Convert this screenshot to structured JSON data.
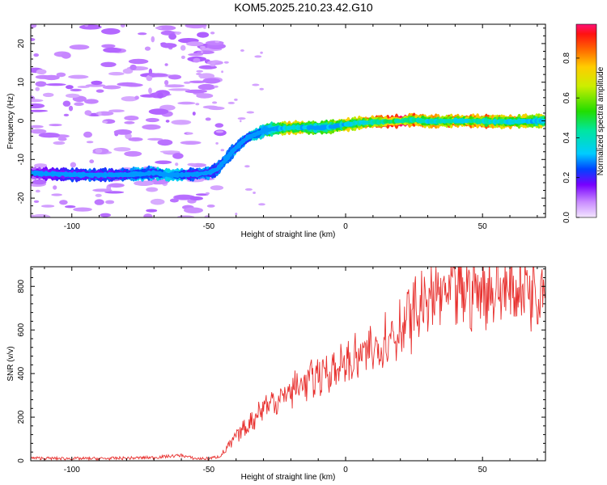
{
  "title": "KOM5.2025.210.23.42.G10",
  "chart_data": [
    {
      "type": "heatmap",
      "xlabel": "Height of straight line (km)",
      "ylabel": "Frequency (Hz)",
      "xlim": [
        -115,
        73
      ],
      "ylim": [
        -25,
        25
      ],
      "x_ticks": [
        -100,
        -50,
        0,
        50
      ],
      "y_ticks": [
        -20,
        -10,
        0,
        10,
        20
      ],
      "colorbar": {
        "label": "Normalized spectral amplitude",
        "range": [
          0,
          0.97
        ],
        "ticks": [
          "0.0",
          "0.2",
          "0.4",
          "0.6",
          "0.8"
        ]
      },
      "ridge": {
        "height_km": [
          -115,
          -105,
          -95,
          -85,
          -75,
          -70,
          -65,
          -60,
          -55,
          -50,
          -47,
          -45,
          -42,
          -40,
          -37,
          -35,
          -32,
          -30,
          -25,
          -20,
          -15,
          -10,
          -5,
          0,
          5,
          10,
          15,
          20,
          25,
          30,
          40,
          50,
          60,
          73
        ],
        "frequency_hz": [
          -13.5,
          -13.8,
          -14,
          -14,
          -13.8,
          -13.5,
          -14,
          -14,
          -13.8,
          -13.5,
          -12.5,
          -11,
          -8.5,
          -7,
          -5,
          -4,
          -3.3,
          -2.5,
          -2,
          -1.8,
          -1.7,
          -1.8,
          -1.5,
          -1,
          -0.5,
          -0.3,
          -0.2,
          0,
          0.3,
          -0.2,
          0,
          -0.1,
          -0.2,
          0
        ],
        "amplitude": [
          0.1,
          0.2,
          0.25,
          0.25,
          0.3,
          0.3,
          0.4,
          0.35,
          0.25,
          0.3,
          0.25,
          0.3,
          0.3,
          0.3,
          0.3,
          0.35,
          0.35,
          0.4,
          0.55,
          0.8,
          0.65,
          0.5,
          0.6,
          0.7,
          0.75,
          0.8,
          0.9,
          0.95,
          0.9,
          0.75,
          0.8,
          0.8,
          0.75,
          0.65
        ]
      }
    },
    {
      "type": "line",
      "xlabel": "Height of straight line (km)",
      "ylabel": "SNR (v/v)",
      "xlim": [
        -115,
        73
      ],
      "ylim": [
        0,
        890
      ],
      "x_ticks": [
        -100,
        -50,
        0,
        50
      ],
      "y_ticks": [
        0,
        200,
        400,
        600,
        800
      ],
      "color": "#e8312f",
      "series": [
        {
          "x": [
            -115,
            -100,
            -90,
            -80,
            -70,
            -65,
            -60,
            -55,
            -50,
            -46,
            -43,
            -40,
            -37,
            -35,
            -32,
            -30,
            -25,
            -20,
            -15,
            -10,
            -5,
            0,
            5,
            10,
            15,
            20,
            25,
            30,
            35,
            40,
            45,
            50,
            55,
            60,
            65,
            70,
            73
          ],
          "values": [
            12,
            10,
            10,
            12,
            15,
            20,
            25,
            10,
            10,
            20,
            60,
            110,
            150,
            170,
            220,
            250,
            280,
            320,
            360,
            390,
            420,
            440,
            470,
            510,
            560,
            610,
            680,
            730,
            760,
            770,
            780,
            785,
            790,
            790,
            795,
            800,
            800
          ]
        }
      ]
    }
  ]
}
